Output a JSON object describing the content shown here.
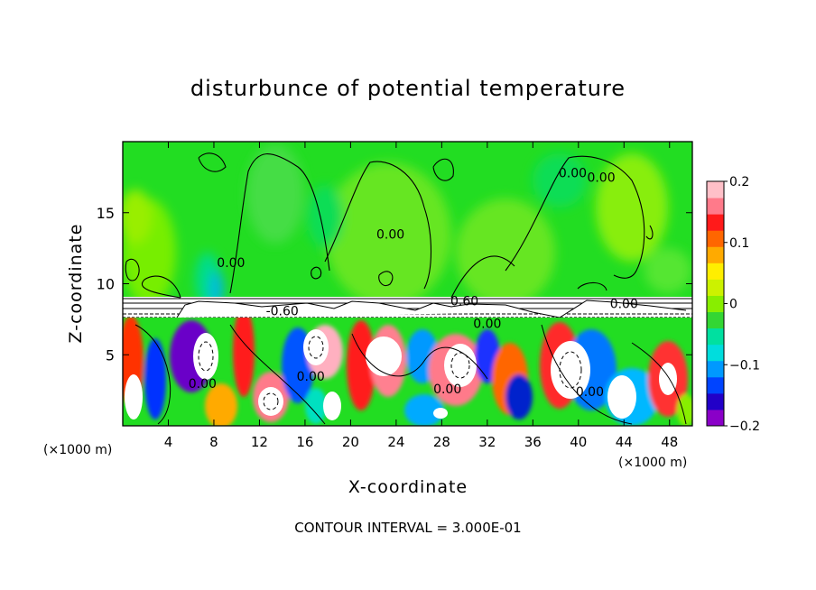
{
  "chart_data": {
    "type": "heatmap",
    "title": "disturbunce of potential temperature",
    "xlabel": "X-coordinate",
    "ylabel": "Z-coordinate",
    "x_unit": "(×1000 m)",
    "footer": "CONTOUR INTERVAL = 3.000E-01",
    "xlim": [
      0,
      50
    ],
    "ylim": [
      0,
      20
    ],
    "x_ticks": [
      4,
      8,
      12,
      16,
      20,
      24,
      28,
      32,
      36,
      40,
      44,
      48
    ],
    "y_ticks": [
      5,
      10,
      15
    ],
    "colorbar": {
      "range": [
        -0.2,
        0.2
      ],
      "ticks": [
        0.2,
        0.1,
        0,
        -0.1,
        -0.2
      ],
      "tick_labels": [
        "0.2",
        "0.1",
        "0",
        "−0.1",
        "−0.2"
      ],
      "colors": [
        "#8a00c8",
        "#2200c8",
        "#0044ff",
        "#0099ff",
        "#00dddd",
        "#00e0a0",
        "#33d633",
        "#88ee00",
        "#ccf200",
        "#ffee00",
        "#ffaa00",
        "#ff6600",
        "#ff1a1a",
        "#ff7a8a",
        "#ffc0c8"
      ]
    },
    "contour_labels": [
      {
        "text": "0.60",
        "x": 30,
        "z": 8.8
      },
      {
        "text": "-0.60",
        "x": 14,
        "z": 8.1
      },
      {
        "text": "0.00",
        "x": 32,
        "z": 7.2
      },
      {
        "text": "0.00",
        "x": 9.5,
        "z": 11.5
      },
      {
        "text": "0.00",
        "x": 7,
        "z": 3
      },
      {
        "text": "0.00",
        "x": 16.5,
        "z": 3.5
      },
      {
        "text": "0.00",
        "x": 28.5,
        "z": 2.6
      },
      {
        "text": "0.00",
        "x": 41,
        "z": 2.4
      },
      {
        "text": "0.00",
        "x": 23.5,
        "z": 13.5
      },
      {
        "text": "0.00",
        "x": 42,
        "z": 17.5
      },
      {
        "text": "0.00",
        "x": 39.5,
        "z": 17.8
      },
      {
        "text": "0.00",
        "x": 44,
        "z": 8.6
      }
    ]
  }
}
